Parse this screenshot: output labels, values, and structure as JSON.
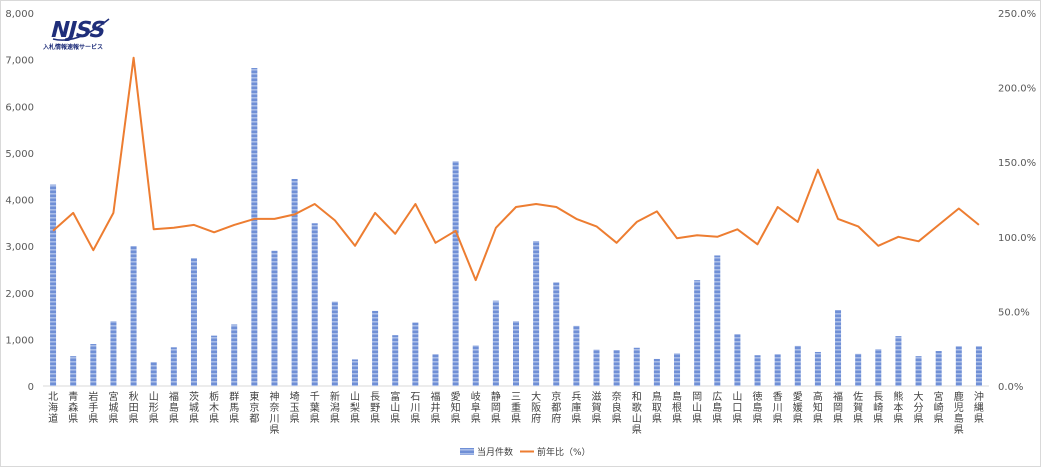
{
  "logo": {
    "text": "NJSS",
    "subtitle": "入札情報速報サービス"
  },
  "colors": {
    "bar": "#5b7fcf",
    "line": "#ed7d31",
    "grid": "#d9d9d9",
    "logo": "#1f2e7a"
  },
  "chart_data": {
    "type": "bar",
    "categories": [
      "北海道",
      "青森県",
      "岩手県",
      "宮城県",
      "秋田県",
      "山形県",
      "福島県",
      "茨城県",
      "栃木県",
      "群馬県",
      "東京都",
      "神奈川県",
      "埼玉県",
      "千葉県",
      "新潟県",
      "山梨県",
      "長野県",
      "富山県",
      "石川県",
      "福井県",
      "愛知県",
      "岐阜県",
      "静岡県",
      "三重県",
      "大阪府",
      "京都府",
      "兵庫県",
      "滋賀県",
      "奈良県",
      "和歌山県",
      "鳥取県",
      "島根県",
      "岡山県",
      "広島県",
      "山口県",
      "徳島県",
      "香川県",
      "愛媛県",
      "高知県",
      "福岡県",
      "佐賀県",
      "長崎県",
      "熊本県",
      "大分県",
      "宮崎県",
      "鹿児島県",
      "沖縄県"
    ],
    "series": [
      {
        "name": "当月件数",
        "type": "bar",
        "axis": "left",
        "values": [
          4320,
          640,
          900,
          1390,
          3000,
          510,
          830,
          2740,
          1080,
          1320,
          6820,
          2900,
          4440,
          3490,
          1810,
          570,
          1610,
          1090,
          1360,
          680,
          4820,
          870,
          1830,
          1390,
          3110,
          2220,
          1290,
          780,
          770,
          820,
          580,
          700,
          2270,
          2800,
          1110,
          660,
          680,
          860,
          730,
          1630,
          690,
          790,
          1070,
          640,
          750,
          850,
          850
        ]
      },
      {
        "name": "前年比（%）",
        "type": "line",
        "axis": "right",
        "values": [
          104,
          116,
          91,
          116,
          220,
          105,
          106,
          108,
          103,
          108,
          112,
          112,
          115,
          122,
          111,
          94,
          116,
          102,
          122,
          96,
          104,
          71,
          106,
          120,
          122,
          120,
          112,
          107,
          96,
          110,
          117,
          99,
          101,
          100,
          105,
          95,
          120,
          110,
          145,
          112,
          107,
          94,
          100,
          97,
          108,
          119,
          108
        ]
      }
    ],
    "y_left": {
      "ylim": [
        0,
        8000
      ],
      "ticks": [
        "0",
        "1,000",
        "2,000",
        "3,000",
        "4,000",
        "5,000",
        "6,000",
        "7,000",
        "8,000"
      ]
    },
    "y_right": {
      "ylim": [
        0,
        250
      ],
      "ticks": [
        "0.0%",
        "50.0%",
        "100.0%",
        "150.0%",
        "200.0%",
        "250.0%"
      ]
    },
    "grid": false,
    "legend": {
      "placement": "bottom",
      "items": [
        "当月件数",
        "前年比（%）"
      ]
    }
  }
}
